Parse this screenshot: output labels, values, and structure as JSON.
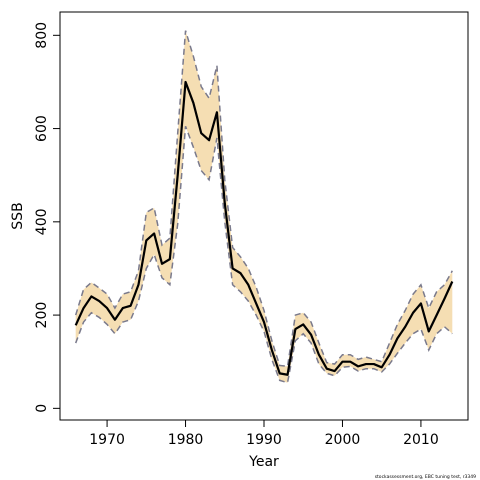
{
  "chart_data": {
    "type": "line",
    "xlabel": "Year",
    "ylabel": "SSB",
    "xlim": [
      1964,
      2016
    ],
    "ylim": [
      -25,
      850
    ],
    "x_ticks": [
      1970,
      1980,
      1990,
      2000,
      2010
    ],
    "y_ticks": [
      0,
      200,
      400,
      600,
      800
    ],
    "grid": false,
    "legend": "none",
    "footnote": "stockassessment.org, EBC tuning test, r3349",
    "colors": {
      "band": "#f5deb3",
      "estimate": "#000000",
      "bound": "#7a7a8c"
    },
    "x": [
      1966,
      1967,
      1968,
      1969,
      1970,
      1971,
      1972,
      1973,
      1974,
      1975,
      1976,
      1977,
      1978,
      1979,
      1980,
      1981,
      1982,
      1983,
      1984,
      1985,
      1986,
      1987,
      1988,
      1989,
      1990,
      1991,
      1992,
      1993,
      1994,
      1995,
      1996,
      1997,
      1998,
      1999,
      2000,
      2001,
      2002,
      2003,
      2004,
      2005,
      2006,
      2007,
      2008,
      2009,
      2010,
      2011,
      2012,
      2013,
      2014
    ],
    "series": [
      {
        "role": "estimate",
        "values": [
          178,
          215,
          240,
          230,
          215,
          190,
          215,
          220,
          265,
          360,
          375,
          310,
          320,
          500,
          700,
          655,
          590,
          575,
          635,
          440,
          300,
          290,
          265,
          225,
          185,
          125,
          75,
          72,
          170,
          180,
          158,
          115,
          85,
          80,
          100,
          100,
          90,
          95,
          95,
          88,
          115,
          150,
          175,
          205,
          225,
          165,
          200,
          235,
          272
        ]
      },
      {
        "role": "lower-bound",
        "values": [
          140,
          185,
          205,
          195,
          180,
          160,
          185,
          190,
          230,
          300,
          330,
          280,
          265,
          395,
          605,
          560,
          510,
          490,
          580,
          400,
          265,
          250,
          230,
          200,
          165,
          105,
          60,
          55,
          145,
          160,
          140,
          95,
          75,
          70,
          88,
          90,
          80,
          85,
          85,
          78,
          95,
          118,
          140,
          160,
          170,
          125,
          160,
          175,
          160
        ]
      },
      {
        "role": "upper-bound",
        "values": [
          200,
          255,
          270,
          258,
          245,
          215,
          245,
          250,
          295,
          420,
          430,
          350,
          365,
          590,
          810,
          755,
          690,
          665,
          735,
          490,
          345,
          325,
          300,
          260,
          210,
          145,
          92,
          90,
          200,
          205,
          185,
          140,
          98,
          95,
          115,
          115,
          105,
          110,
          105,
          100,
          140,
          180,
          210,
          245,
          265,
          215,
          250,
          265,
          295
        ]
      }
    ]
  }
}
